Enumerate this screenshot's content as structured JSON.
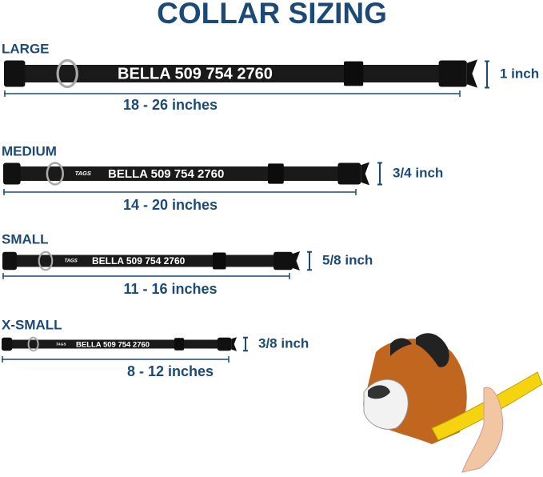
{
  "title": "COLLAR SIZING",
  "sizes": [
    {
      "name": "LARGE",
      "range": "18 - 26 inches",
      "width": "1 inch",
      "collar_text": "BELLA 509 754 2760"
    },
    {
      "name": "MEDIUM",
      "range": "14 - 20 inches",
      "width": "3/4 inch",
      "collar_text": "BELLA 509 754 2760",
      "brand": "TAGS"
    },
    {
      "name": "SMALL",
      "range": "11 - 16 inches",
      "width": "5/8 inch",
      "collar_text": "BELLA 509 754 2760",
      "brand": "TAGS"
    },
    {
      "name": "X-SMALL",
      "range": "8 - 12 inches",
      "width": "3/8 inch",
      "collar_text": "BELLA 509 754 2760",
      "brand": "TAGS"
    }
  ]
}
